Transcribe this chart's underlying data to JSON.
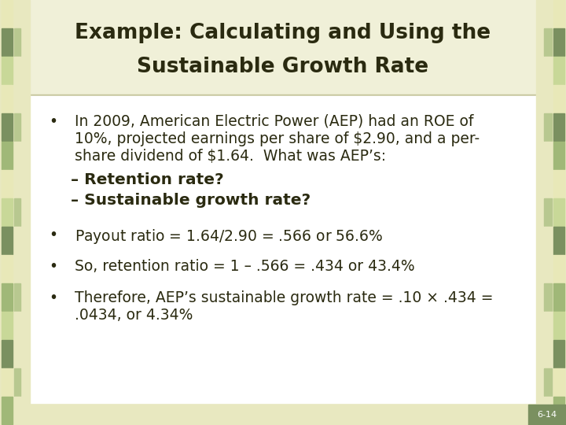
{
  "title_line1": "Example: Calculating and Using the",
  "title_line2": "Sustainable Growth Rate",
  "title_bg": "#f0f0d8",
  "title_color": "#2a2a10",
  "body_bg": "#ffffff",
  "outer_bg": "#e8e8c0",
  "slide_bg": "#e8e8c0",
  "bullet1_l1": "In 2009, American Electric Power (AEP) had an ROE of",
  "bullet1_l2": "10%, projected earnings per share of $2.90, and a per-",
  "bullet1_l3": "share dividend of $1.64.  What was AEP’s:",
  "sub1": "– Retention rate?",
  "sub2": "– Sustainable growth rate?",
  "bullet2_text": "Payout ratio = $1.64 / $2.90 = .566 or 56.6%",
  "bullet3_text": "So, retention ratio = 1 – .566 = .434 or 43.4%",
  "bullet4_line1": "Therefore, AEP’s sustainable growth rate = .10 × .434 =",
  "bullet4_line2": ".0434, or 4.34%",
  "slide_num": "6-14",
  "text_color": "#2a2a10",
  "accent_green_dark": "#7a9060",
  "accent_green_med": "#a0b878",
  "accent_green_lt": "#c8d898",
  "accent_cream": "#e8e8b8",
  "accent_palegreen": "#b8c890",
  "sq_colors": [
    "#e8e8b8",
    "#7a9060",
    "#c8d898",
    "#e8e8b8",
    "#7a9060",
    "#a0b878",
    "#e8e8b8",
    "#c8d898",
    "#7a9060",
    "#e8e8b8",
    "#a0b878",
    "#c8d898",
    "#7a9060",
    "#e8e8b8",
    "#a0b878"
  ],
  "sq_colors2": [
    "#e8e8b8",
    "#7a9060",
    "#c8d898",
    "#e8e8b8",
    "#7a9060",
    "#a0b878",
    "#e8e8b8",
    "#c8d898",
    "#7a9060",
    "#e8e8b8",
    "#a0b878",
    "#c8d898",
    "#7a9060",
    "#e8e8b8",
    "#a0b878"
  ],
  "slide_num_bg": "#7a9060"
}
